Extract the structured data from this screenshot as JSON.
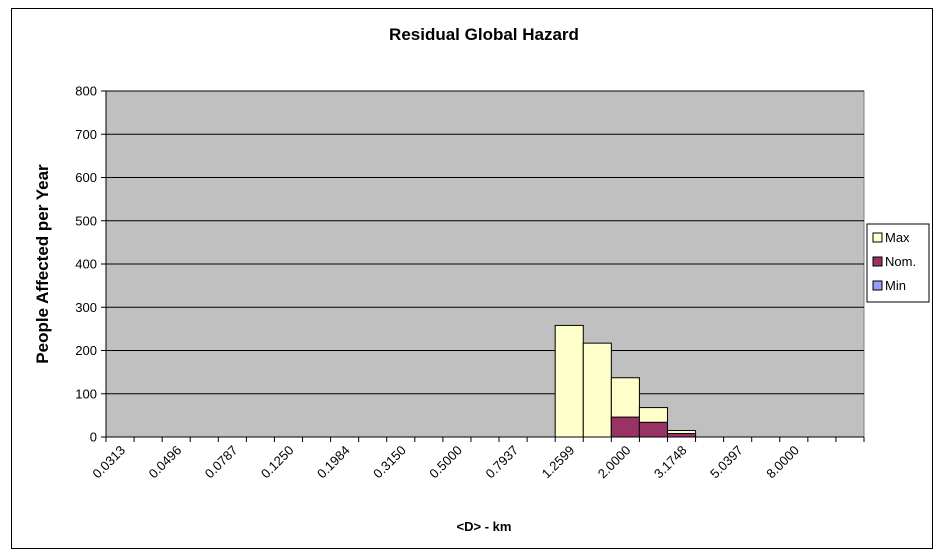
{
  "chart_data": {
    "type": "bar",
    "title": "Residual Global Hazard",
    "xlabel": "<D> - km",
    "ylabel": "People Affected per Year",
    "ylim": [
      0,
      800
    ],
    "yticks": [
      0,
      100,
      200,
      300,
      400,
      500,
      600,
      700,
      800
    ],
    "grid": true,
    "legend_position": "right",
    "xtick_labels": [
      "0.0313",
      "0.0496",
      "0.0787",
      "0.1250",
      "0.1984",
      "0.3150",
      "0.5000",
      "0.7937",
      "1.2599",
      "2.0000",
      "3.1748",
      "5.0397",
      "8.0000"
    ],
    "bins": 27,
    "series": [
      {
        "name": "Max",
        "color": "#ffffcc",
        "values": [
          0,
          0,
          0,
          0,
          0,
          0,
          0,
          0,
          0,
          0,
          0,
          0,
          0,
          0,
          0,
          0,
          258,
          217,
          137,
          68,
          15,
          0,
          0,
          0,
          0,
          0,
          0
        ]
      },
      {
        "name": "Nom.",
        "color": "#993366",
        "values": [
          0,
          0,
          0,
          0,
          0,
          0,
          0,
          0,
          0,
          0,
          0,
          0,
          0,
          0,
          0,
          0,
          0,
          0,
          46,
          34,
          8,
          0,
          0,
          0,
          0,
          0,
          0
        ]
      },
      {
        "name": "Min",
        "color": "#9999ff",
        "values": [
          0,
          0,
          0,
          0,
          0,
          0,
          0,
          0,
          0,
          0,
          0,
          0,
          0,
          0,
          0,
          0,
          0,
          0,
          0,
          0,
          0,
          0,
          0,
          0,
          0,
          0,
          0
        ]
      }
    ],
    "plot_background": "#c0c0c0"
  }
}
